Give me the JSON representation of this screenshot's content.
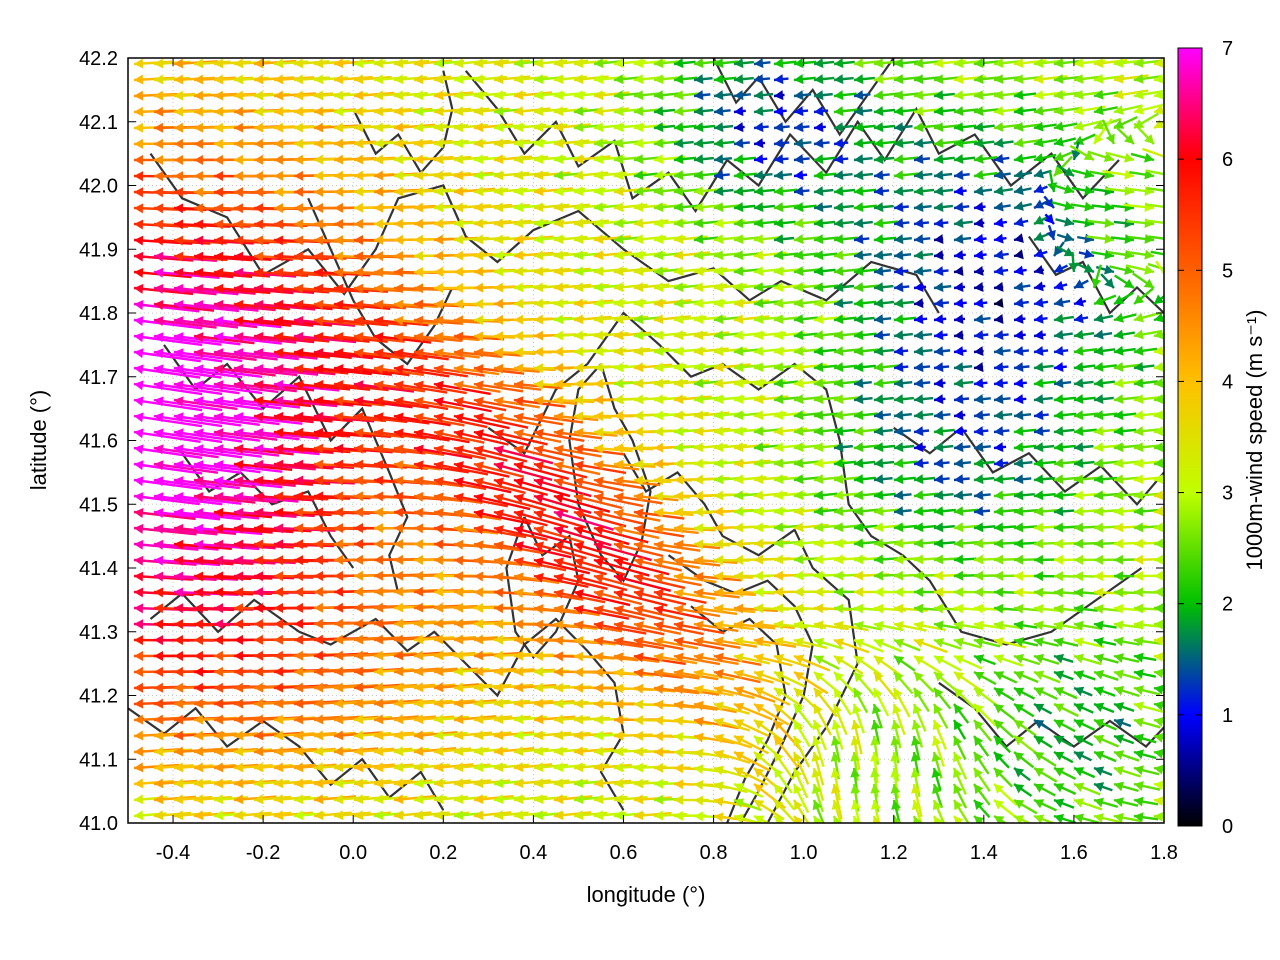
{
  "chart_data": {
    "type": "quiver",
    "xlabel": "longitude (°)",
    "ylabel": "latitude (°)",
    "colorbar_label": "1000m-wind speed (m s⁻¹)",
    "xlim": [
      -0.5,
      1.8
    ],
    "ylim": [
      41.0,
      42.2
    ],
    "clim": [
      0,
      7
    ],
    "x_ticks": [
      "-0.4",
      "-0.2",
      "0.0",
      "0.2",
      "0.4",
      "0.6",
      "0.8",
      "1.0",
      "1.2",
      "1.4",
      "1.6",
      "1.8"
    ],
    "x_tick_values": [
      -0.4,
      -0.2,
      0.0,
      0.2,
      0.4,
      0.6,
      0.8,
      1.0,
      1.2,
      1.4,
      1.6,
      1.8
    ],
    "y_ticks": [
      "41.0",
      "41.1",
      "41.2",
      "41.3",
      "41.4",
      "41.5",
      "41.6",
      "41.7",
      "41.8",
      "41.9",
      "42.0",
      "42.1",
      "42.2"
    ],
    "y_tick_values": [
      41.0,
      41.1,
      41.2,
      41.3,
      41.4,
      41.5,
      41.6,
      41.7,
      41.8,
      41.9,
      42.0,
      42.1,
      42.2
    ],
    "colorbar_ticks": [
      "0",
      "1",
      "2",
      "3",
      "4",
      "5",
      "6",
      "7"
    ],
    "colorbar_tick_values": [
      0,
      1,
      2,
      3,
      4,
      5,
      6,
      7
    ],
    "colormap": [
      "#000000",
      "#0000ff",
      "#00c000",
      "#c0ff00",
      "#ffc000",
      "#ff6000",
      "#ff0000",
      "#ff00ff"
    ],
    "grid": true,
    "contours": "terrain elevation (black lines)"
  }
}
